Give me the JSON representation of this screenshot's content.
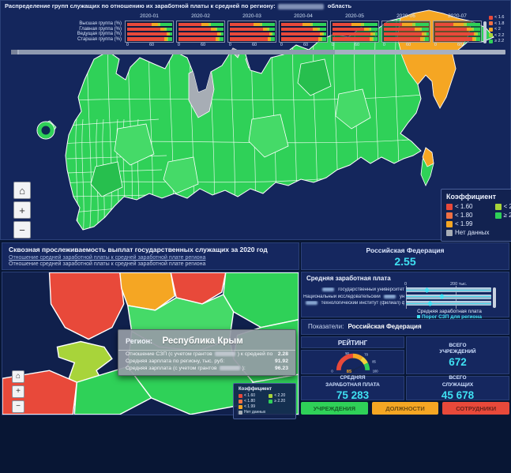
{
  "colors": {
    "bg": "#081634",
    "section": "#15275f",
    "water": "#14265c",
    "green": "#2fd158",
    "green2": "#45da68",
    "green3": "#27bf4e",
    "lime": "#a8d43a",
    "orange": "#f5a623",
    "red": "#e8493a",
    "dark_red": "#f07043",
    "gray": "#a7adb5",
    "cyan": "#3fe0f2"
  },
  "map_legend": {
    "title": "Коэффициент",
    "col1": [
      {
        "label": "< 1.60",
        "color": "#e8493a"
      },
      {
        "label": "< 1.80",
        "color": "#f07043"
      },
      {
        "label": "< 1.99",
        "color": "#f5a623"
      },
      {
        "label": "Нет данных",
        "color": "#a7adb5"
      }
    ],
    "col2": [
      {
        "label": "< 2.20",
        "color": "#a8d43a"
      },
      {
        "label": "≥ 2.20",
        "color": "#2fd158"
      }
    ]
  },
  "map_controls": {
    "home": "⌂",
    "zoom_in": "+",
    "zoom_out": "−"
  },
  "header_panel": {
    "title": "Сквозная прослеживаемость выплат государственных служащих за 2020 год",
    "link1": "Отношение средней заработной платы к средней заработной плате региона",
    "link2": "Отношение средней заработной платы к средней заработной плате региона"
  },
  "rf_panel": {
    "title": "Российская Федерация",
    "value": "2.55"
  },
  "salary_panel": {
    "title": "Средняя заработная плата",
    "axis_ticks": [
      "0",
      "200 тыс."
    ],
    "rows": [
      {
        "pre": "",
        "post": "государственный университет",
        "marker_pct": 22
      },
      {
        "pre": "Национальный исследовательский",
        "post": "универс..",
        "marker_pct": 40
      },
      {
        "pre": "",
        "post": "технологический институт (филиал) федерал..",
        "marker_pct": 26
      }
    ],
    "legend_series": "Средняя заработная плата",
    "legend_threshold": "Порог СЗП для региона"
  },
  "pokazateli": {
    "label": "Показатели:",
    "value": "Российская Федерация"
  },
  "rating": {
    "title": "РЕЙТИНГ",
    "gauge_ticks": [
      "0",
      "50",
      "70",
      "85",
      "100"
    ],
    "gauge_value": "85"
  },
  "stats": {
    "institutions": {
      "label": "ВСЕГО\nУЧРЕЖДЕНИЙ",
      "value": "672"
    },
    "salary": {
      "label": "СРЕДНЯЯ\nЗАРАБОТНАЯ ПЛАТА",
      "value": "75 283"
    },
    "employees": {
      "label": "ВСЕГО\nСЛУЖАЩИХ",
      "value": "45 678"
    }
  },
  "action_buttons": [
    {
      "label": "УЧРЕЖДЕНИЯ",
      "color": "#2fd158"
    },
    {
      "label": "ДОЛЖНОСТИ",
      "color": "#f5a623"
    },
    {
      "label": "СОТРУДНИКИ",
      "color": "#e8493a"
    }
  ],
  "tooltip": {
    "region_label": "Регион:",
    "region_value": "Республика Крым",
    "rows": [
      {
        "pre": "Отношение СЗП (с учетом грантов",
        "redacted": true,
        "post": ") к средней по региону:",
        "value": "2.28"
      },
      {
        "pre": "Средняя зарплата по региону, тыс. руб:",
        "redacted": false,
        "post": "",
        "value": "91.92"
      },
      {
        "pre": "Средняя зарплата (с учетом грантов",
        "redacted": true,
        "post": "):",
        "value": "96.23"
      }
    ]
  },
  "bottom": {
    "title": "Распределение групп служащих по отношению их заработной платы к средней по региону:",
    "title_suffix": "область",
    "groups": [
      "Высшая группа (%)",
      "Главная группа (%)",
      "Ведущая группа (%)",
      "Старшая группа (%)"
    ],
    "axis_ticks": [
      "0",
      "60"
    ],
    "legend": [
      {
        "label": "< 1.6",
        "color": "#e8493a"
      },
      {
        "label": "< 1.8",
        "color": "#f07043"
      },
      {
        "label": "< 2",
        "color": "#f5a623"
      },
      {
        "label": "< 2.2",
        "color": "#a8d43a"
      },
      {
        "label": "≥ 2.2",
        "color": "#2fd158"
      }
    ]
  },
  "chart_data": {
    "type": "bar",
    "stacked": true,
    "orientation": "horizontal",
    "unit": "%",
    "title": "Распределение групп служащих по отношению их заработной платы к средней по региону",
    "categories": [
      "Высшая группа (%)",
      "Главная группа (%)",
      "Ведущая группа (%)",
      "Старшая группа (%)"
    ],
    "segment_labels": [
      "< 1.6",
      "< 2",
      "< 2.2",
      "≥ 2.2"
    ],
    "segment_colors": [
      "#e8493a",
      "#f5a623",
      "#a8d43a",
      "#2fd158"
    ],
    "x_axis": {
      "ticks": [
        0,
        60
      ],
      "max": 100
    },
    "months": [
      {
        "label": "2020-01",
        "rows": [
          [
            55,
            14,
            4,
            27
          ],
          [
            74,
            9,
            4,
            13
          ],
          [
            87,
            4,
            3,
            6
          ],
          [
            83,
            5,
            4,
            8
          ]
        ]
      },
      {
        "label": "2020-02",
        "rows": [
          [
            50,
            16,
            6,
            28
          ],
          [
            72,
            10,
            4,
            14
          ],
          [
            86,
            5,
            3,
            6
          ],
          [
            82,
            6,
            4,
            8
          ]
        ]
      },
      {
        "label": "2020-03",
        "rows": [
          [
            52,
            15,
            5,
            28
          ],
          [
            73,
            9,
            5,
            13
          ],
          [
            87,
            4,
            3,
            6
          ],
          [
            84,
            5,
            3,
            8
          ]
        ]
      },
      {
        "label": "2020-04",
        "rows": [
          [
            48,
            17,
            6,
            29
          ],
          [
            71,
            10,
            5,
            14
          ],
          [
            86,
            5,
            3,
            6
          ],
          [
            83,
            5,
            4,
            8
          ]
        ]
      },
      {
        "label": "2020-05",
        "rows": [
          [
            42,
            22,
            6,
            30
          ],
          [
            70,
            11,
            5,
            14
          ],
          [
            85,
            5,
            4,
            6
          ],
          [
            82,
            6,
            4,
            8
          ]
        ]
      },
      {
        "label": "2020-06",
        "rows": [
          [
            40,
            23,
            7,
            30
          ],
          [
            69,
            11,
            5,
            15
          ],
          [
            85,
            5,
            4,
            6
          ],
          [
            81,
            6,
            4,
            9
          ]
        ]
      },
      {
        "label": "2020-07",
        "rows": [
          [
            41,
            22,
            7,
            30
          ],
          [
            70,
            11,
            5,
            14
          ],
          [
            86,
            4,
            4,
            6
          ],
          [
            82,
            5,
            4,
            9
          ]
        ]
      }
    ],
    "gauge": {
      "ticks": [
        0,
        50,
        70,
        85,
        100
      ],
      "value": 85
    }
  }
}
